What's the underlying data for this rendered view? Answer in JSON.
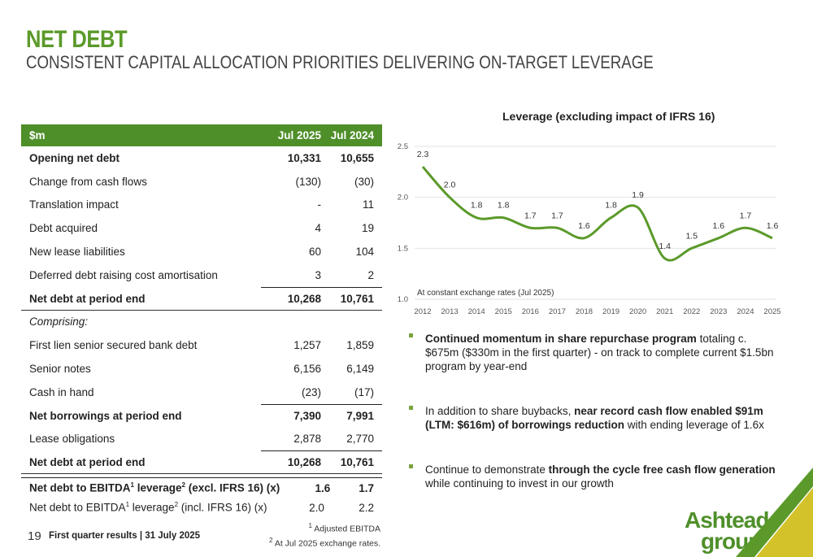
{
  "slide": {
    "title": "NET DEBT",
    "subtitle": "CONSISTENT CAPITAL ALLOCATION PRIORITIES DELIVERING ON-TARGET LEVERAGE",
    "page_number": "19",
    "footer": "First quarter results | 31 July 2025",
    "note1": "Adjusted EBITDA",
    "note2": "At Jul 2025 exchange rates.",
    "logo_line1": "Ashtead",
    "logo_line2": "group"
  },
  "table": {
    "header": {
      "label": "$m",
      "c1": "Jul 2025",
      "c2": "Jul 2024"
    },
    "rows": [
      {
        "label": "Opening net debt",
        "c1": "10,331",
        "c2": "10,655"
      },
      {
        "label": "Change from cash flows",
        "c1": "(130)",
        "c2": "(30)"
      },
      {
        "label": "Translation impact",
        "c1": "-",
        "c2": "11"
      },
      {
        "label": "Debt acquired",
        "c1": "4",
        "c2": "19"
      },
      {
        "label": "New lease liabilities",
        "c1": "60",
        "c2": "104"
      },
      {
        "label": "Deferred debt raising cost amortisation",
        "c1": "3",
        "c2": "2"
      },
      {
        "label": "Net debt at period end",
        "c1": "10,268",
        "c2": "10,761"
      },
      {
        "label": "Comprising:",
        "c1": "",
        "c2": ""
      },
      {
        "label": "First lien senior secured bank debt",
        "c1": "1,257",
        "c2": "1,859"
      },
      {
        "label": "Senior notes",
        "c1": "6,156",
        "c2": "6,149"
      },
      {
        "label": "Cash in hand",
        "c1": "(23)",
        "c2": "(17)"
      },
      {
        "label": "Net borrowings at period end",
        "c1": "7,390",
        "c2": "7,991"
      },
      {
        "label": "Lease obligations",
        "c1": "2,878",
        "c2": "2,770"
      },
      {
        "label": "Net debt at period end",
        "c1": "10,268",
        "c2": "10,761"
      }
    ],
    "leverage_excl": {
      "pre": "Net debt to EBITDA",
      "sup1": "1",
      "mid": " leverage",
      "sup2": "2",
      "post": " (excl. IFRS 16) (x)",
      "c1": "1.6",
      "c2": "1.7"
    },
    "leverage_incl": {
      "pre": "Net debt to EBITDA",
      "sup1": "1",
      "mid": " leverage",
      "sup2": "2",
      "post": " (incl. IFRS 16) (x)",
      "c1": "2.0",
      "c2": "2.2"
    }
  },
  "chart_data": {
    "type": "line",
    "title": "Leverage (excluding impact of IFRS 16)",
    "annotation": "At constant exchange rates (Jul 2025)",
    "x": [
      "2012",
      "2013",
      "2014",
      "2015",
      "2016",
      "2017",
      "2018",
      "2019",
      "2020",
      "2021",
      "2022",
      "2023",
      "2024",
      "2025"
    ],
    "y": [
      2.3,
      2.0,
      1.8,
      1.8,
      1.7,
      1.7,
      1.6,
      1.8,
      1.9,
      1.4,
      1.5,
      1.6,
      1.7,
      1.6
    ],
    "y_labels": [
      "2.3",
      "2.0",
      "1.8",
      "1.8",
      "1.7",
      "1.7",
      "1.6",
      "1.8",
      "1.9",
      "1.4",
      "1.5",
      "1.6",
      "1.7",
      "1.6"
    ],
    "yticks": [
      "1.0",
      "1.5",
      "2.0",
      "2.5"
    ],
    "ylim": [
      1.0,
      2.5
    ],
    "grid": true,
    "line_color": "#5b9a2a"
  },
  "bullets": [
    {
      "bold": "Continued momentum in share repurchase program",
      "rest": " totaling c. $675m ($330m in the first quarter) - on track to complete current $1.5bn program by year-end"
    },
    {
      "pre": "In addition to share buybacks, ",
      "bold": "near record cash flow enabled $91m (LTM: $616m) of borrowings reduction",
      "rest": " with ending leverage of 1.6x"
    },
    {
      "pre": "Continue to demonstrate ",
      "bold": "through the cycle free cash flow generation",
      "rest": " while continuing to invest in our growth"
    }
  ]
}
